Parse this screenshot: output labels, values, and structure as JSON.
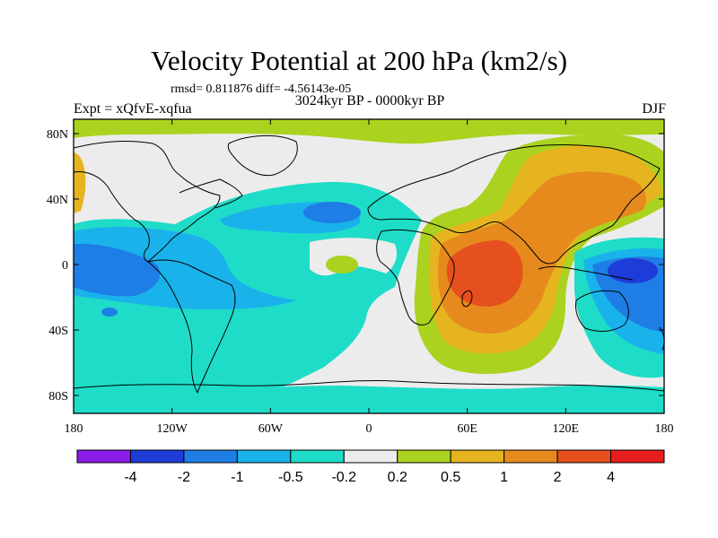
{
  "header": {
    "title": "Velocity Potential at 200 hPa (km2/s)",
    "stats": "rmsd= 0.811876 diff= -4.56143e-05",
    "subtitle": "3024kyr BP - 0000kyr BP",
    "experiment": "Expt = xQfvE-xqfua",
    "season": "DJF"
  },
  "axes": {
    "x_ticks": [
      "180",
      "120W",
      "60W",
      "0",
      "60E",
      "120E",
      "180"
    ],
    "y_ticks": [
      "80N",
      "40N",
      "0",
      "40S",
      "80S"
    ]
  },
  "colorbar": {
    "colors": [
      "#8a1ee8",
      "#1e3cd8",
      "#1e7ee6",
      "#1ab2ea",
      "#1edcc8",
      "#ececec",
      "#aad21e",
      "#e6b41e",
      "#e68a1e",
      "#e6501e",
      "#e61e1e"
    ],
    "labels": [
      "-4",
      "-2",
      "-1",
      "-0.5",
      "-0.2",
      "0.2",
      "0.5",
      "1",
      "2",
      "4"
    ]
  },
  "palette": {
    "background": "#ececec",
    "coast": "#000000"
  }
}
